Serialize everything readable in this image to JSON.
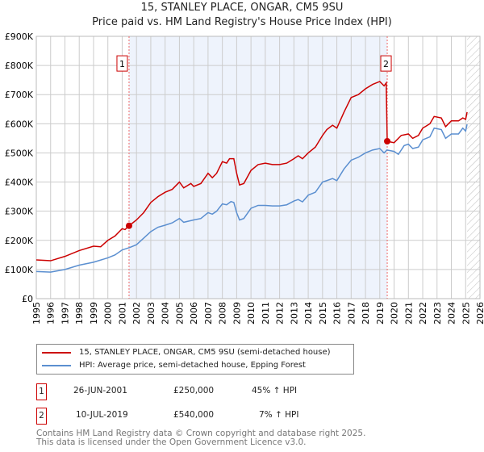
{
  "chart_data": {
    "type": "line",
    "title": "15, STANLEY PLACE, ONGAR, CM5 9SU",
    "subtitle": "Price paid vs. HM Land Registry's House Price Index (HPI)",
    "xlim": [
      1995,
      2026
    ],
    "ylim": [
      0,
      900000
    ],
    "y_ticks": [
      0,
      100000,
      200000,
      300000,
      400000,
      500000,
      600000,
      700000,
      800000,
      900000
    ],
    "y_tick_labels": [
      "£0",
      "£100K",
      "£200K",
      "£300K",
      "£400K",
      "£500K",
      "£600K",
      "£700K",
      "£800K",
      "£900K"
    ],
    "x_tick_labels": [
      "1995",
      "1996",
      "1997",
      "1998",
      "1999",
      "2000",
      "2001",
      "2002",
      "2003",
      "2004",
      "2005",
      "2006",
      "2007",
      "2008",
      "2009",
      "2010",
      "2011",
      "2012",
      "2013",
      "2014",
      "2015",
      "2016",
      "2017",
      "2018",
      "2019",
      "2020",
      "2021",
      "2022",
      "2023",
      "2024",
      "2025",
      "2026"
    ],
    "grid": true,
    "shaded_range": [
      2001.48,
      2019.52
    ],
    "forecast_hatch_from": 2025.1,
    "series": [
      {
        "name": "15, STANLEY PLACE, ONGAR, CM5 9SU (semi-detached house)",
        "color": "#cc0000",
        "points": [
          [
            1995,
            133
          ],
          [
            1996,
            130
          ],
          [
            1997,
            145
          ],
          [
            1998,
            165
          ],
          [
            1999,
            180
          ],
          [
            1999.5,
            178
          ],
          [
            2000,
            200
          ],
          [
            2000.5,
            215
          ],
          [
            2001,
            240
          ],
          [
            2001.2,
            237
          ],
          [
            2001.48,
            250
          ],
          [
            2002,
            270
          ],
          [
            2002.5,
            295
          ],
          [
            2003,
            330
          ],
          [
            2003.5,
            350
          ],
          [
            2004,
            365
          ],
          [
            2004.5,
            375
          ],
          [
            2005,
            400
          ],
          [
            2005.3,
            380
          ],
          [
            2005.8,
            395
          ],
          [
            2006,
            385
          ],
          [
            2006.5,
            395
          ],
          [
            2007,
            430
          ],
          [
            2007.3,
            415
          ],
          [
            2007.6,
            430
          ],
          [
            2008,
            470
          ],
          [
            2008.3,
            465
          ],
          [
            2008.5,
            480
          ],
          [
            2008.8,
            480
          ],
          [
            2009,
            430
          ],
          [
            2009.2,
            390
          ],
          [
            2009.5,
            395
          ],
          [
            2010,
            440
          ],
          [
            2010.5,
            460
          ],
          [
            2011,
            465
          ],
          [
            2011.5,
            460
          ],
          [
            2012,
            460
          ],
          [
            2012.5,
            465
          ],
          [
            2013,
            480
          ],
          [
            2013.3,
            490
          ],
          [
            2013.6,
            480
          ],
          [
            2014,
            500
          ],
          [
            2014.5,
            520
          ],
          [
            2015,
            560
          ],
          [
            2015.3,
            580
          ],
          [
            2015.7,
            595
          ],
          [
            2016,
            585
          ],
          [
            2016.5,
            640
          ],
          [
            2017,
            690
          ],
          [
            2017.5,
            700
          ],
          [
            2018,
            720
          ],
          [
            2018.5,
            735
          ],
          [
            2019,
            745
          ],
          [
            2019.3,
            730
          ],
          [
            2019.45,
            740
          ],
          [
            2019.52,
            540
          ],
          [
            2020,
            535
          ],
          [
            2020.5,
            560
          ],
          [
            2021,
            565
          ],
          [
            2021.3,
            550
          ],
          [
            2021.7,
            560
          ],
          [
            2022,
            585
          ],
          [
            2022.5,
            600
          ],
          [
            2022.8,
            625
          ],
          [
            2023.3,
            620
          ],
          [
            2023.6,
            590
          ],
          [
            2024,
            610
          ],
          [
            2024.5,
            610
          ],
          [
            2024.8,
            620
          ],
          [
            2025,
            615
          ],
          [
            2025.1,
            640
          ]
        ]
      },
      {
        "name": "HPI: Average price, semi-detached house, Epping Forest",
        "color": "#5b8fd0",
        "points": [
          [
            1995,
            93
          ],
          [
            1996,
            91
          ],
          [
            1997,
            100
          ],
          [
            1998,
            115
          ],
          [
            1999,
            125
          ],
          [
            2000,
            140
          ],
          [
            2000.5,
            150
          ],
          [
            2001,
            167
          ],
          [
            2001.5,
            175
          ],
          [
            2002,
            185
          ],
          [
            2003,
            230
          ],
          [
            2003.5,
            245
          ],
          [
            2004,
            252
          ],
          [
            2004.5,
            260
          ],
          [
            2005,
            275
          ],
          [
            2005.3,
            262
          ],
          [
            2006,
            270
          ],
          [
            2006.5,
            275
          ],
          [
            2007,
            295
          ],
          [
            2007.3,
            290
          ],
          [
            2007.6,
            300
          ],
          [
            2008,
            325
          ],
          [
            2008.3,
            322
          ],
          [
            2008.6,
            333
          ],
          [
            2008.8,
            330
          ],
          [
            2009,
            295
          ],
          [
            2009.2,
            270
          ],
          [
            2009.5,
            275
          ],
          [
            2010,
            310
          ],
          [
            2010.5,
            320
          ],
          [
            2011,
            320
          ],
          [
            2011.5,
            318
          ],
          [
            2012,
            318
          ],
          [
            2012.5,
            322
          ],
          [
            2013,
            335
          ],
          [
            2013.3,
            340
          ],
          [
            2013.6,
            332
          ],
          [
            2014,
            355
          ],
          [
            2014.5,
            365
          ],
          [
            2015,
            400
          ],
          [
            2015.3,
            405
          ],
          [
            2015.7,
            412
          ],
          [
            2016,
            405
          ],
          [
            2016.5,
            445
          ],
          [
            2017,
            475
          ],
          [
            2017.5,
            485
          ],
          [
            2018,
            500
          ],
          [
            2018.5,
            510
          ],
          [
            2019,
            515
          ],
          [
            2019.3,
            500
          ],
          [
            2019.5,
            510
          ],
          [
            2020,
            505
          ],
          [
            2020.3,
            495
          ],
          [
            2020.7,
            525
          ],
          [
            2021,
            530
          ],
          [
            2021.3,
            515
          ],
          [
            2021.7,
            520
          ],
          [
            2022,
            545
          ],
          [
            2022.5,
            555
          ],
          [
            2022.8,
            585
          ],
          [
            2023.3,
            580
          ],
          [
            2023.6,
            550
          ],
          [
            2024,
            565
          ],
          [
            2024.5,
            565
          ],
          [
            2024.8,
            585
          ],
          [
            2025,
            575
          ],
          [
            2025.1,
            598
          ]
        ]
      }
    ],
    "value_unit": "£K",
    "annotations": [
      {
        "label": "1",
        "x": 2001.48,
        "y": 250,
        "date": "26-JUN-2001",
        "price": "£250,000",
        "hpi": "45% ↑ HPI"
      },
      {
        "label": "2",
        "x": 2019.52,
        "y": 540,
        "date": "10-JUL-2019",
        "price": "£540,000",
        "hpi": "7% ↑ HPI"
      }
    ]
  },
  "footer": [
    "Contains HM Land Registry data © Crown copyright and database right 2025.",
    "This data is licensed under the Open Government Licence v3.0."
  ]
}
